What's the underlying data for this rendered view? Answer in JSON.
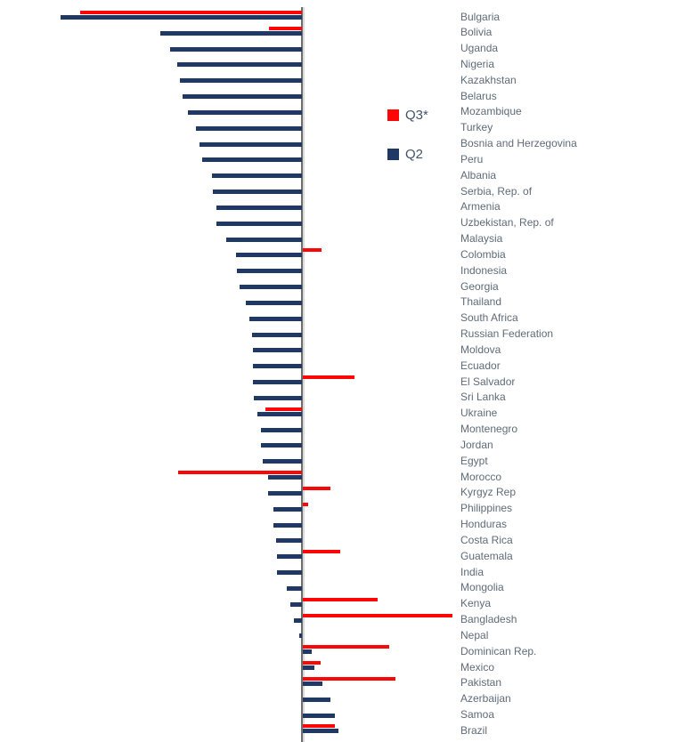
{
  "legend": {
    "q3": {
      "label": "Q3*"
    },
    "q2": {
      "label": "Q2"
    }
  },
  "colors": {
    "q3_red": "#fe0605",
    "q2_navy": "#1f3864",
    "axis_gray": "#6e6e6e",
    "label_gray": "#5f6b78",
    "legend_text": "#44546a"
  },
  "chart_data": {
    "type": "bar",
    "orientation": "horizontal",
    "title": "",
    "xlabel": "",
    "ylabel": "",
    "axis_note": "no numeric axis labels visible; values are proportional units relative to the zero baseline",
    "xlim": [
      -280,
      175
    ],
    "grid": false,
    "legend_position": "left-middle",
    "categories": [
      "Bulgaria",
      "Bolivia",
      "Uganda",
      "Nigeria",
      "Kazakhstan",
      "Belarus",
      "Mozambique",
      "Turkey",
      "Bosnia and Herzegovina",
      "Peru",
      "Albania",
      "Serbia, Rep. of",
      "Armenia",
      "Uzbekistan, Rep. of",
      "Malaysia",
      "Colombia",
      "Indonesia",
      "Georgia",
      "Thailand",
      "South Africa",
      "Russian Federation",
      "Moldova",
      "Ecuador",
      "El Salvador",
      "Sri Lanka",
      "Ukraine",
      "Montenegro",
      "Jordan",
      "Egypt",
      "Morocco",
      "Kyrgyz Rep",
      "Philippines",
      "Honduras",
      "Costa Rica",
      "Guatemala",
      "India",
      "Mongolia",
      "Kenya",
      "Bangladesh",
      "Nepal",
      "Dominican Rep.",
      "Mexico",
      "Pakistan",
      "Azerbaijan",
      "Samoa",
      "Brazil"
    ],
    "series": [
      {
        "name": "Q3*",
        "color": "#fe0605",
        "values": [
          -249,
          -37,
          null,
          null,
          null,
          null,
          null,
          null,
          null,
          null,
          null,
          null,
          null,
          null,
          null,
          21,
          null,
          null,
          null,
          null,
          null,
          null,
          null,
          58,
          null,
          -41,
          null,
          null,
          null,
          -139,
          31,
          6,
          null,
          null,
          42,
          null,
          null,
          84,
          168,
          null,
          97,
          20,
          104,
          null,
          null,
          36
        ]
      },
      {
        "name": "Q2",
        "color": "#1f3864",
        "values": [
          -271,
          -159,
          -148,
          -140,
          -137,
          -134,
          -128,
          -119,
          -115,
          -112,
          -101,
          -100,
          -96,
          -96,
          -85,
          -74,
          -73,
          -70,
          -63,
          -59,
          -56,
          -55,
          -55,
          -55,
          -54,
          -50,
          -46,
          -46,
          -44,
          -38,
          -38,
          -32,
          -32,
          -29,
          -28,
          -28,
          -17,
          -13,
          -9,
          -3,
          10,
          13,
          22,
          31,
          36,
          40
        ]
      }
    ]
  }
}
